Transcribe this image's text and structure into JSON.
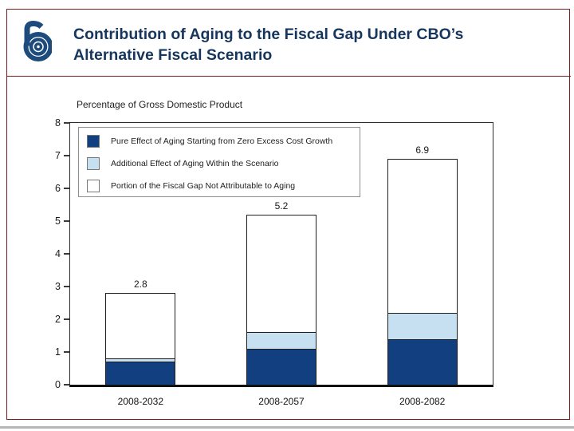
{
  "header": {
    "title_line1": "Contribution of Aging to the Fiscal Gap Under CBO’s",
    "title_line2": "Alternative Fiscal Scenario",
    "logo": "cbo-logo"
  },
  "colors": {
    "title": "#17365d",
    "border": "#7b1e1e",
    "bar_outline": "#1f1f1f"
  },
  "chart_data": {
    "type": "bar",
    "stacked": true,
    "axis_label": "Percentage of Gross Domestic Product",
    "categories": [
      "2008-2032",
      "2008-2057",
      "2008-2082"
    ],
    "series": [
      {
        "name": "Pure Effect of Aging Starting from Zero Excess Cost Growth",
        "color": "#123f7f",
        "values": [
          0.7,
          1.1,
          1.4
        ]
      },
      {
        "name": "Additional Effect of Aging Within the Scenario",
        "color": "#c6dff1",
        "values": [
          0.1,
          0.5,
          0.8
        ]
      },
      {
        "name": "Portion of the Fiscal Gap Not Attributable to Aging",
        "color": "#ffffff",
        "values": [
          2.0,
          3.6,
          4.7
        ]
      }
    ],
    "totals": [
      "2.8",
      "5.2",
      "6.9"
    ],
    "ylim": [
      0,
      8
    ],
    "yticks": [
      0,
      1,
      2,
      3,
      4,
      5,
      6,
      7,
      8
    ],
    "xlabel": "",
    "ylabel": "",
    "grid": false,
    "legend_position": "upper-left-inside"
  }
}
